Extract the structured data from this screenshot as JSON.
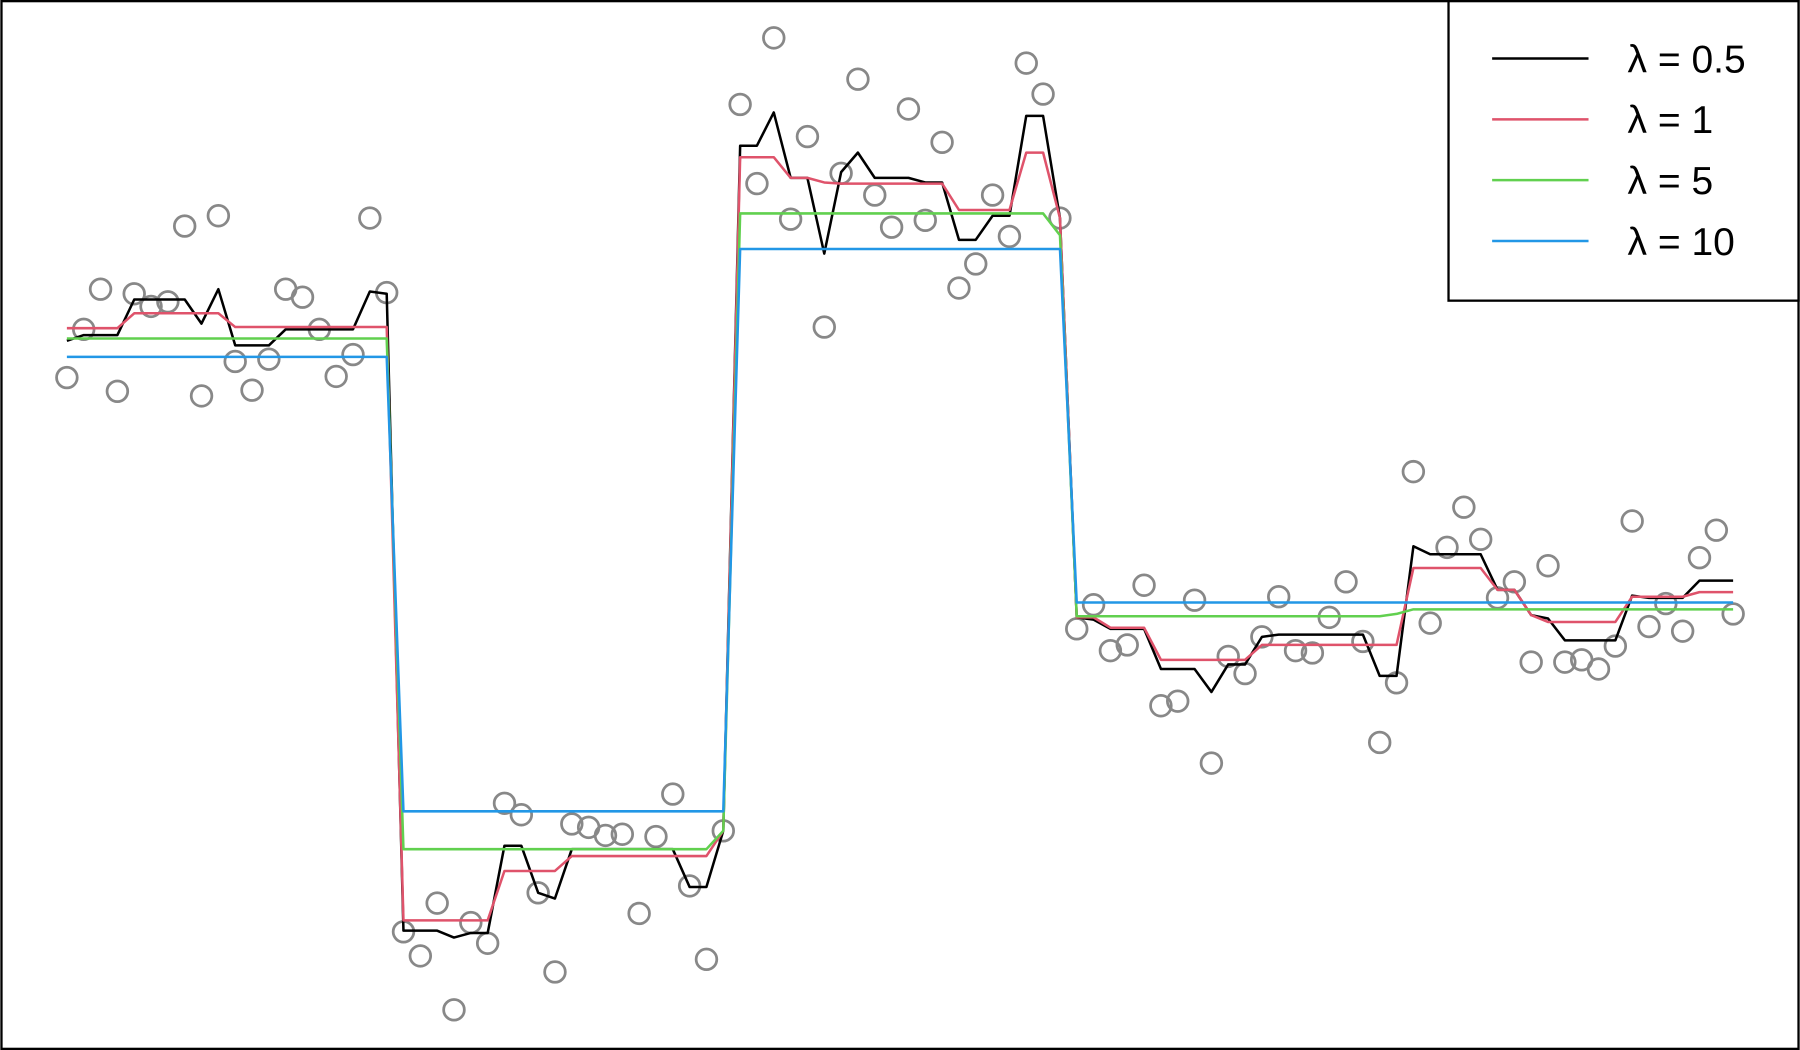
{
  "chart_data": {
    "type": "line",
    "title": "",
    "xlabel": "",
    "ylabel": "",
    "axes_shown": false,
    "grid": false,
    "legend_position": "top-right",
    "x": {
      "start": 1,
      "end": 100,
      "step": 1
    },
    "observations": {
      "marker": "open-circle",
      "color": "#888888",
      "values": [
        2.01,
        2.43,
        2.78,
        1.89,
        2.74,
        2.63,
        2.67,
        3.33,
        1.85,
        3.42,
        2.15,
        1.9,
        2.17,
        2.78,
        2.71,
        2.43,
        2.02,
        2.21,
        3.4,
        2.75,
        -2.82,
        -3.03,
        -2.57,
        -3.5,
        -2.74,
        -2.92,
        -1.7,
        -1.8,
        -2.48,
        -3.17,
        -1.88,
        -1.91,
        -1.98,
        -1.97,
        -2.66,
        -1.99,
        -1.62,
        -2.42,
        -3.06,
        -1.94,
        4.39,
        3.7,
        4.97,
        3.39,
        4.11,
        2.45,
        3.79,
        4.61,
        3.6,
        3.32,
        4.35,
        3.38,
        4.06,
        2.79,
        3.0,
        3.6,
        3.24,
        4.75,
        4.48,
        3.4,
        -0.18,
        0.03,
        -0.37,
        -0.32,
        0.2,
        -0.85,
        -0.81,
        0.07,
        -1.35,
        -0.42,
        -0.57,
        -0.25,
        0.1,
        -0.37,
        -0.39,
        -0.08,
        0.23,
        -0.29,
        -1.17,
        -0.65,
        1.19,
        -0.13,
        0.53,
        0.88,
        0.6,
        0.09,
        0.23,
        -0.47,
        0.37,
        -0.47,
        -0.45,
        -0.53,
        -0.33,
        0.76,
        -0.16,
        0.04,
        -0.2,
        0.44,
        0.68,
        -0.05
      ]
    },
    "series": [
      {
        "name": "λ = 0.5",
        "color": "#000000",
        "values": [
          2.33,
          2.38,
          2.38,
          2.38,
          2.69,
          2.69,
          2.69,
          2.69,
          2.48,
          2.78,
          2.29,
          2.29,
          2.29,
          2.43,
          2.43,
          2.43,
          2.43,
          2.43,
          2.76,
          2.74,
          -2.81,
          -2.81,
          -2.81,
          -2.87,
          -2.83,
          -2.83,
          -2.07,
          -2.07,
          -2.48,
          -2.53,
          -2.1,
          -2.1,
          -2.1,
          -2.1,
          -2.1,
          -2.1,
          -2.1,
          -2.43,
          -2.43,
          -1.94,
          4.03,
          4.03,
          4.32,
          3.75,
          3.75,
          3.09,
          3.8,
          3.97,
          3.75,
          3.75,
          3.75,
          3.71,
          3.71,
          3.21,
          3.21,
          3.42,
          3.42,
          4.29,
          4.29,
          3.4,
          -0.08,
          -0.1,
          -0.18,
          -0.18,
          -0.18,
          -0.53,
          -0.53,
          -0.53,
          -0.73,
          -0.49,
          -0.49,
          -0.25,
          -0.23,
          -0.23,
          -0.23,
          -0.23,
          -0.23,
          -0.23,
          -0.59,
          -0.59,
          0.54,
          0.47,
          0.47,
          0.47,
          0.47,
          0.16,
          0.16,
          -0.06,
          -0.09,
          -0.28,
          -0.28,
          -0.28,
          -0.28,
          0.11,
          0.09,
          0.09,
          0.09,
          0.24,
          0.24,
          0.24
        ]
      },
      {
        "name": "λ = 1",
        "color": "#DF536B",
        "values": [
          2.44,
          2.44,
          2.44,
          2.44,
          2.57,
          2.57,
          2.57,
          2.57,
          2.57,
          2.57,
          2.45,
          2.45,
          2.45,
          2.45,
          2.45,
          2.45,
          2.45,
          2.45,
          2.45,
          2.45,
          -2.72,
          -2.72,
          -2.72,
          -2.72,
          -2.72,
          -2.72,
          -2.29,
          -2.29,
          -2.29,
          -2.29,
          -2.16,
          -2.16,
          -2.16,
          -2.16,
          -2.16,
          -2.16,
          -2.16,
          -2.16,
          -2.16,
          -1.94,
          3.93,
          3.93,
          3.93,
          3.75,
          3.75,
          3.71,
          3.7,
          3.7,
          3.7,
          3.7,
          3.7,
          3.7,
          3.7,
          3.47,
          3.47,
          3.47,
          3.47,
          3.97,
          3.97,
          3.4,
          -0.08,
          -0.08,
          -0.17,
          -0.17,
          -0.17,
          -0.45,
          -0.45,
          -0.45,
          -0.45,
          -0.45,
          -0.45,
          -0.32,
          -0.32,
          -0.32,
          -0.32,
          -0.32,
          -0.32,
          -0.32,
          -0.32,
          -0.32,
          0.35,
          0.35,
          0.35,
          0.35,
          0.35,
          0.16,
          0.16,
          -0.06,
          -0.12,
          -0.12,
          -0.12,
          -0.12,
          -0.12,
          0.1,
          0.1,
          0.1,
          0.1,
          0.14,
          0.14,
          0.14
        ]
      },
      {
        "name": "λ = 5",
        "color": "#61D04F",
        "values": [
          2.35,
          2.35,
          2.35,
          2.35,
          2.35,
          2.35,
          2.35,
          2.35,
          2.35,
          2.35,
          2.35,
          2.35,
          2.35,
          2.35,
          2.35,
          2.35,
          2.35,
          2.35,
          2.35,
          2.35,
          -2.1,
          -2.1,
          -2.1,
          -2.1,
          -2.1,
          -2.1,
          -2.1,
          -2.1,
          -2.1,
          -2.1,
          -2.1,
          -2.1,
          -2.1,
          -2.1,
          -2.1,
          -2.1,
          -2.1,
          -2.1,
          -2.1,
          -1.94,
          3.44,
          3.44,
          3.44,
          3.44,
          3.44,
          3.44,
          3.44,
          3.44,
          3.44,
          3.44,
          3.44,
          3.44,
          3.44,
          3.44,
          3.44,
          3.44,
          3.44,
          3.44,
          3.44,
          3.25,
          -0.07,
          -0.07,
          -0.07,
          -0.07,
          -0.07,
          -0.07,
          -0.07,
          -0.07,
          -0.07,
          -0.07,
          -0.07,
          -0.07,
          -0.07,
          -0.07,
          -0.07,
          -0.07,
          -0.07,
          -0.07,
          -0.07,
          -0.05,
          -0.01,
          -0.01,
          -0.01,
          -0.01,
          -0.01,
          -0.01,
          -0.01,
          -0.01,
          -0.01,
          -0.01,
          -0.01,
          -0.01,
          -0.01,
          -0.01,
          -0.01,
          -0.01,
          -0.01,
          -0.01,
          -0.01,
          -0.01
        ]
      },
      {
        "name": "λ = 10",
        "color": "#2297E6",
        "values": [
          2.19,
          2.19,
          2.19,
          2.19,
          2.19,
          2.19,
          2.19,
          2.19,
          2.19,
          2.19,
          2.19,
          2.19,
          2.19,
          2.19,
          2.19,
          2.19,
          2.19,
          2.19,
          2.19,
          2.19,
          -1.77,
          -1.77,
          -1.77,
          -1.77,
          -1.77,
          -1.77,
          -1.77,
          -1.77,
          -1.77,
          -1.77,
          -1.77,
          -1.77,
          -1.77,
          -1.77,
          -1.77,
          -1.77,
          -1.77,
          -1.77,
          -1.77,
          -1.77,
          3.13,
          3.13,
          3.13,
          3.13,
          3.13,
          3.13,
          3.13,
          3.13,
          3.13,
          3.13,
          3.13,
          3.13,
          3.13,
          3.13,
          3.13,
          3.13,
          3.13,
          3.13,
          3.13,
          3.13,
          0.05,
          0.05,
          0.05,
          0.05,
          0.05,
          0.05,
          0.05,
          0.05,
          0.05,
          0.05,
          0.05,
          0.05,
          0.05,
          0.05,
          0.05,
          0.05,
          0.05,
          0.05,
          0.05,
          0.05,
          0.05,
          0.05,
          0.05,
          0.05,
          0.05,
          0.05,
          0.05,
          0.05,
          0.05,
          0.05,
          0.05,
          0.05,
          0.05,
          0.05,
          0.05,
          0.05,
          0.05,
          0.05,
          0.05,
          0.05
        ]
      }
    ]
  }
}
